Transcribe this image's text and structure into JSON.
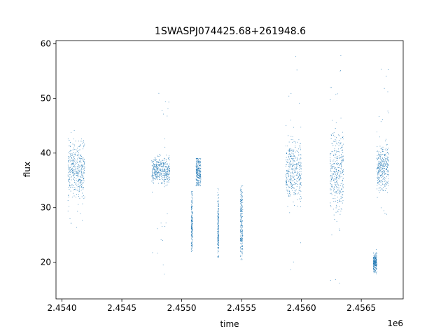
{
  "chart_data": {
    "type": "scatter",
    "title": "1SWASPJ074425.68+261948.6",
    "xlabel": "time",
    "ylabel": "flux",
    "x_offset_label": "1e6",
    "xlim": [
      2.45395,
      2.45685
    ],
    "ylim": [
      13.3,
      60.6
    ],
    "x_ticks": [
      2.454,
      2.4545,
      2.455,
      2.4555,
      2.456,
      2.4565
    ],
    "x_tick_labels": [
      "2.4540",
      "2.4545",
      "2.4550",
      "2.4555",
      "2.4560",
      "2.4565"
    ],
    "y_ticks": [
      20,
      30,
      40,
      50,
      60
    ],
    "y_tick_labels": [
      "20",
      "30",
      "40",
      "50",
      "60"
    ],
    "grid": false,
    "legend": "none",
    "marker_color": "#1f77b4",
    "series": [
      {
        "clusters": [
          {
            "x_range": [
              2.45405,
              2.45419
            ],
            "y_center": 37.0,
            "y_spread": 2.5,
            "y_min": 26.0,
            "y_max": 45.0
          },
          {
            "x_range": [
              2.45475,
              2.4549
            ],
            "y_center": 36.8,
            "y_spread": 1.2,
            "y_min": 15.5,
            "y_max": 56.0
          },
          {
            "x_range": [
              2.45512,
              2.45516
            ],
            "y_center": 36.5,
            "y_spread": 1.5,
            "y_min": 34.0,
            "y_max": 39.0
          },
          {
            "x_range": [
              2.45508,
              2.45509
            ],
            "y_center": 28.0,
            "y_spread": 3.0,
            "y_min": 22.0,
            "y_max": 33.0
          },
          {
            "x_range": [
              2.4553,
              2.45531
            ],
            "y_center": 26.0,
            "y_spread": 3.0,
            "y_min": 21.0,
            "y_max": 33.5
          },
          {
            "x_range": [
              2.45549,
              2.45551
            ],
            "y_center": 27.0,
            "y_spread": 3.5,
            "y_min": 20.5,
            "y_max": 34.0
          },
          {
            "x_range": [
              2.45587,
              2.456
            ],
            "y_center": 37.0,
            "y_spread": 3.0,
            "y_min": 15.5,
            "y_max": 58.0
          },
          {
            "x_range": [
              2.45624,
              2.45635
            ],
            "y_center": 36.5,
            "y_spread": 3.5,
            "y_min": 15.5,
            "y_max": 58.0
          },
          {
            "x_range": [
              2.4566,
              2.45663
            ],
            "y_center": 20.0,
            "y_spread": 0.8,
            "y_min": 17.5,
            "y_max": 22.5
          },
          {
            "x_range": [
              2.45663,
              2.45673
            ],
            "y_center": 37.5,
            "y_spread": 2.0,
            "y_min": 25.5,
            "y_max": 57.5
          }
        ]
      }
    ]
  }
}
